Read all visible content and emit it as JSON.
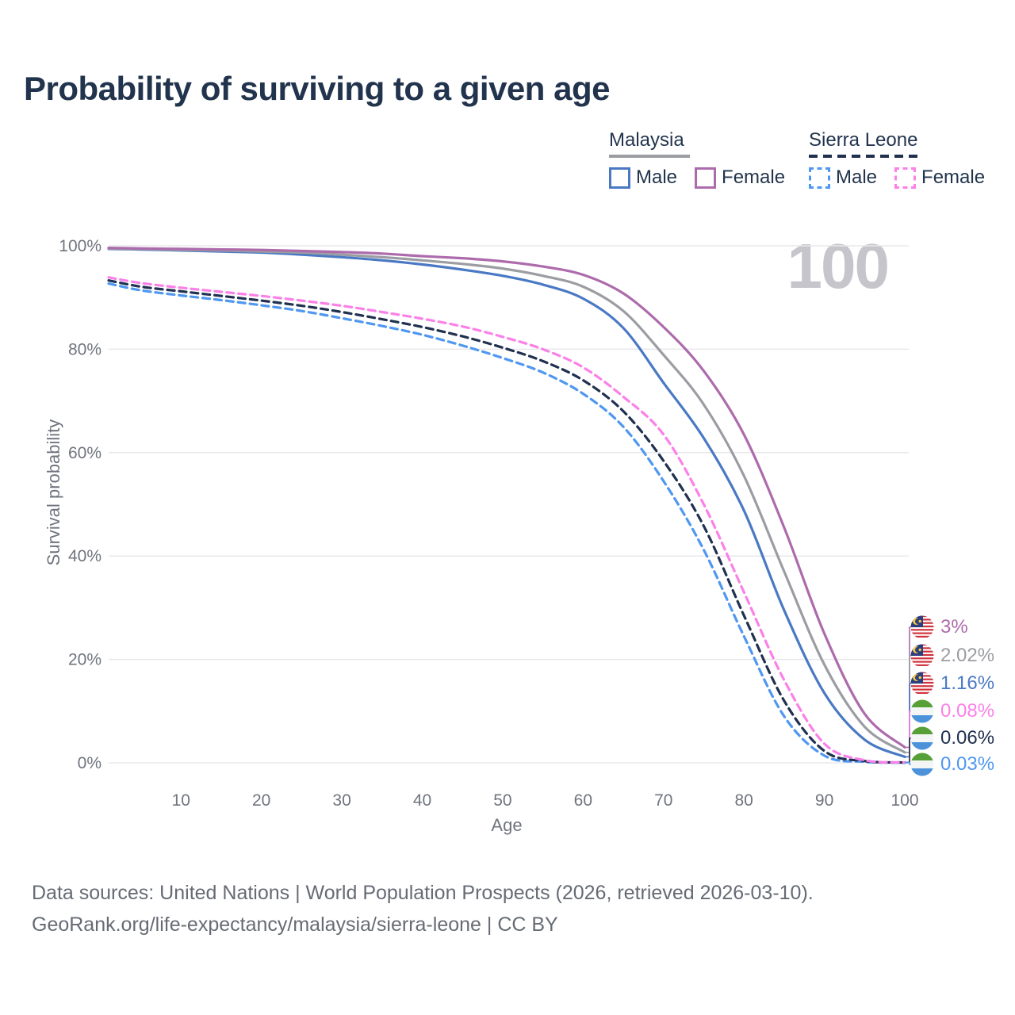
{
  "title": "Probability of surviving to a given age",
  "legend": {
    "groups": [
      {
        "label": "Malaysia",
        "line_style": "solid",
        "underline_color": "#9b9da2",
        "items": [
          {
            "label": "Male",
            "color": "#4a79c4"
          },
          {
            "label": "Female",
            "color": "#ad6bac"
          }
        ]
      },
      {
        "label": "Sierra Leone",
        "line_style": "dashed",
        "underline_color": "#20304f",
        "items": [
          {
            "label": "Male",
            "color": "#4f97f0"
          },
          {
            "label": "Female",
            "color": "#fb80e8"
          }
        ]
      }
    ]
  },
  "watermark": "100",
  "axes": {
    "x_label": "Age",
    "y_label": "Survival probability",
    "x_ticks": [
      10,
      20,
      30,
      40,
      50,
      60,
      70,
      80,
      90,
      100
    ],
    "y_ticks": [
      {
        "value": 0,
        "label": "0%"
      },
      {
        "value": 20,
        "label": "20%"
      },
      {
        "value": 40,
        "label": "40%"
      },
      {
        "value": 60,
        "label": "60%"
      },
      {
        "value": 80,
        "label": "80%"
      },
      {
        "value": 100,
        "label": "100%"
      }
    ]
  },
  "chart_data": {
    "type": "line",
    "title": "Probability of surviving to a given age",
    "xlabel": "Age",
    "ylabel": "Survival probability",
    "x_range": [
      1,
      100
    ],
    "ylim": [
      0,
      100
    ],
    "grid": true,
    "x": [
      1,
      5,
      10,
      15,
      20,
      25,
      30,
      35,
      40,
      45,
      50,
      55,
      60,
      65,
      70,
      75,
      80,
      85,
      90,
      95,
      100
    ],
    "series": [
      {
        "name": "Malaysia Female",
        "country": "Malaysia",
        "sex": "Female",
        "color": "#ad6bac",
        "dash": "solid",
        "flag": "malaysia",
        "end_label": "3%",
        "values": [
          99.6,
          99.5,
          99.4,
          99.3,
          99.2,
          99.0,
          98.8,
          98.5,
          98.0,
          97.6,
          97.0,
          96.0,
          94.4,
          90.8,
          84.3,
          75.8,
          63.5,
          45.5,
          25.0,
          9.5,
          3.0
        ]
      },
      {
        "name": "Malaysia (both sexes)",
        "country": "Malaysia",
        "sex": "Both",
        "color": "#9b9da2",
        "dash": "solid",
        "flag": "malaysia",
        "end_label": "2.02%",
        "values": [
          99.5,
          99.4,
          99.2,
          99.1,
          98.9,
          98.7,
          98.3,
          97.8,
          97.2,
          96.5,
          95.6,
          94.2,
          92.1,
          87.4,
          78.9,
          69.3,
          55.5,
          37.0,
          19.0,
          7.0,
          2.02
        ]
      },
      {
        "name": "Malaysia Male",
        "country": "Malaysia",
        "sex": "Male",
        "color": "#4a79c4",
        "dash": "solid",
        "flag": "malaysia",
        "end_label": "1.16%",
        "values": [
          99.4,
          99.3,
          99.1,
          98.9,
          98.7,
          98.3,
          97.8,
          97.2,
          96.4,
          95.4,
          94.2,
          92.5,
          89.8,
          84.1,
          73.5,
          62.8,
          48.8,
          29.5,
          13.5,
          4.5,
          1.16
        ]
      },
      {
        "name": "Sierra Leone Female",
        "country": "Sierra Leone",
        "sex": "Female",
        "color": "#fb80e8",
        "dash": "dashed",
        "flag": "sierra-leone",
        "end_label": "0.08%",
        "values": [
          93.9,
          92.8,
          91.9,
          91.1,
          90.3,
          89.4,
          88.4,
          87.2,
          85.9,
          84.4,
          82.4,
          80.0,
          76.5,
          70.8,
          63.5,
          50.0,
          33.0,
          16.0,
          3.7,
          0.5,
          0.08
        ]
      },
      {
        "name": "Sierra Leone (both sexes)",
        "country": "Sierra Leone",
        "sex": "Both",
        "color": "#20304f",
        "dash": "dashed",
        "flag": "sierra-leone",
        "end_label": "0.06%",
        "values": [
          93.3,
          92.1,
          91.2,
          90.3,
          89.4,
          88.4,
          87.2,
          85.8,
          84.3,
          82.5,
          80.3,
          77.7,
          74.0,
          68.0,
          58.4,
          45.8,
          28.5,
          12.0,
          2.3,
          0.35,
          0.06
        ]
      },
      {
        "name": "Sierra Leone Male",
        "country": "Sierra Leone",
        "sex": "Male",
        "color": "#4f97f0",
        "dash": "dashed",
        "flag": "sierra-leone",
        "end_label": "0.03%",
        "values": [
          92.7,
          91.4,
          90.4,
          89.5,
          88.5,
          87.4,
          86.0,
          84.5,
          82.8,
          80.7,
          78.3,
          75.5,
          71.4,
          65.0,
          54.5,
          41.2,
          24.5,
          9.0,
          1.4,
          0.2,
          0.03
        ]
      }
    ],
    "legend_position": "top-right"
  },
  "footer": {
    "line1": "Data sources: United Nations | World Population Prospects (2026, retrieved 2026-03-10).",
    "line2": "GeoRank.org/life-expectancy/malaysia/sierra-leone | CC BY"
  }
}
